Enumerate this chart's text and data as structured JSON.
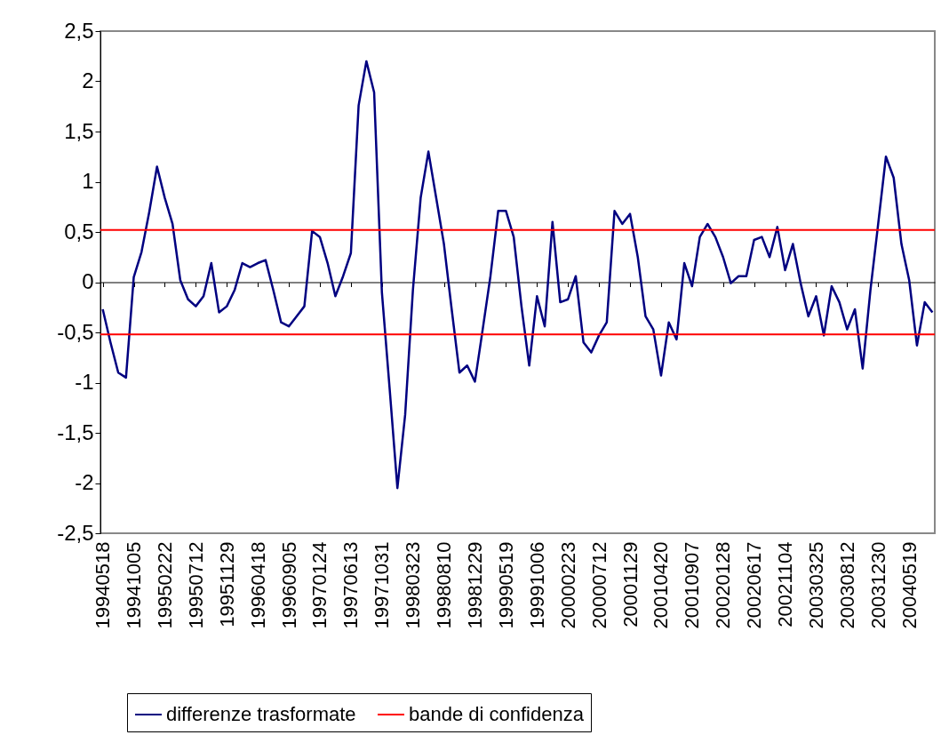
{
  "chart_data": {
    "type": "line",
    "categories": [
      "19940518",
      null,
      null,
      null,
      "19941005",
      null,
      null,
      null,
      "19950222",
      null,
      null,
      null,
      "19950712",
      null,
      null,
      null,
      "19951129",
      null,
      null,
      null,
      "19960418",
      null,
      null,
      null,
      "19960905",
      null,
      null,
      null,
      "19970124",
      null,
      null,
      null,
      "19970613",
      null,
      null,
      null,
      "19971031",
      null,
      null,
      null,
      "19980323",
      null,
      null,
      null,
      "19980810",
      null,
      null,
      null,
      "19981229",
      null,
      null,
      null,
      "19990519",
      null,
      null,
      null,
      "19991006",
      null,
      null,
      null,
      "20000223",
      null,
      null,
      null,
      "20000712",
      null,
      null,
      null,
      "20001129",
      null,
      null,
      null,
      "20010420",
      null,
      null,
      null,
      "20010907",
      null,
      null,
      null,
      "20020128",
      null,
      null,
      null,
      "20020617",
      null,
      null,
      null,
      "20021104",
      null,
      null,
      null,
      "20030325",
      null,
      null,
      null,
      "20030812",
      null,
      null,
      null,
      "20031230",
      null,
      null,
      null,
      "20040519",
      null,
      null,
      null
    ],
    "series": [
      {
        "name": "differenze trasformate",
        "color": "#000080",
        "values": [
          -0.27,
          -0.6,
          -0.9,
          -0.95,
          0.05,
          0.3,
          0.7,
          1.15,
          0.84,
          0.58,
          0.02,
          -0.17,
          -0.24,
          -0.14,
          0.19,
          -0.3,
          -0.24,
          -0.08,
          0.19,
          0.15,
          0.19,
          0.22,
          -0.08,
          -0.4,
          -0.44,
          -0.34,
          -0.24,
          0.51,
          0.45,
          0.19,
          -0.14,
          0.06,
          0.29,
          1.76,
          2.2,
          1.89,
          -0.1,
          -1.06,
          -2.05,
          -1.32,
          -0.08,
          0.84,
          1.3,
          0.84,
          0.38,
          -0.27,
          -0.9,
          -0.83,
          -0.99,
          -0.47,
          0.06,
          0.71,
          0.71,
          0.45,
          -0.24,
          -0.83,
          -0.14,
          -0.44,
          0.6,
          -0.2,
          -0.17,
          0.06,
          -0.6,
          -0.7,
          -0.53,
          -0.4,
          0.71,
          0.58,
          0.68,
          0.25,
          -0.34,
          -0.47,
          -0.93,
          -0.4,
          -0.57,
          0.19,
          -0.04,
          0.45,
          0.58,
          0.45,
          0.25,
          -0.01,
          0.06,
          0.06,
          0.42,
          0.45,
          0.25,
          0.55,
          0.12,
          0.38,
          -0.01,
          -0.34,
          -0.14,
          -0.53,
          -0.04,
          -0.2,
          -0.47,
          -0.27,
          -0.86,
          -0.08,
          0.58,
          1.25,
          1.04,
          0.38,
          0.02,
          -0.63,
          -0.2,
          -0.3
        ]
      }
    ],
    "ylim": [
      -2.5,
      2.5
    ],
    "yticks": [
      {
        "value": -2.5,
        "label": "-2,5"
      },
      -2,
      {
        "value": -1.5,
        "label": "-1,5"
      },
      -1,
      {
        "value": -0.5,
        "label": "-0,5"
      },
      0,
      {
        "value": 0.5,
        "label": "0,5"
      },
      1,
      {
        "value": 1.5,
        "label": "1,5"
      },
      2,
      {
        "value": 2.5,
        "label": "2,5"
      }
    ],
    "ref_lines": [
      {
        "axis": "y",
        "value": 0.52,
        "label": "bande di confidenza",
        "color": "#ff0000"
      },
      {
        "axis": "y",
        "value": -0.52,
        "color": "#ff0000"
      }
    ],
    "grid": false,
    "legend": "bottom"
  }
}
